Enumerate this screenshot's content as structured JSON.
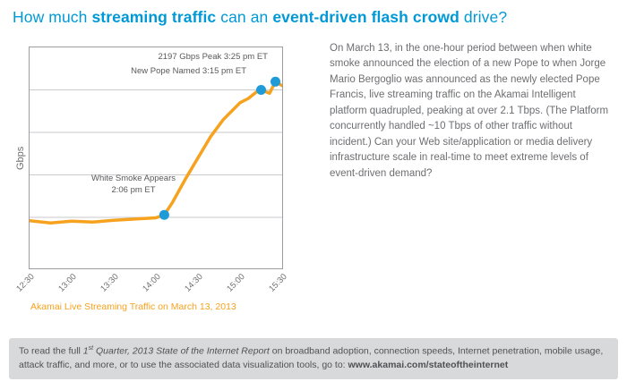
{
  "title": {
    "parts": [
      {
        "text": "How much ",
        "bold": false,
        "name": "title-part"
      },
      {
        "text": "streaming traffic",
        "bold": true,
        "name": "title-part"
      },
      {
        "text": " can an ",
        "bold": false,
        "name": "title-part"
      },
      {
        "text": "event-driven flash crowd",
        "bold": true,
        "name": "title-part"
      },
      {
        "text": " drive?",
        "bold": false,
        "name": "title-part"
      }
    ]
  },
  "colors": {
    "title_blue": "#0099D6",
    "line_orange": "#F6A21E",
    "dot_blue": "#1F9CD7",
    "text_gray": "#6D6E71",
    "grid_gray": "#C8CACC",
    "plot_border": "#9B9DA0",
    "footer_bg": "#D8D9DB"
  },
  "chart_data": {
    "type": "line",
    "title": "",
    "xlabel": "",
    "ylabel": "Gbps",
    "caption": "Akamai Live Streaming Traffic on March 13, 2013",
    "x_ticks": [
      "12:30",
      "13:00",
      "13:30",
      "14:00",
      "14:30",
      "15:00",
      "15:30"
    ],
    "x": [
      12.5,
      12.75,
      13.0,
      13.25,
      13.5,
      13.75,
      14.0,
      14.1,
      14.2,
      14.35,
      14.5,
      14.65,
      14.8,
      15.0,
      15.1,
      15.2,
      15.25,
      15.35,
      15.42,
      15.5
    ],
    "values": [
      560,
      535,
      555,
      545,
      565,
      580,
      595,
      630,
      780,
      1050,
      1300,
      1550,
      1750,
      1950,
      2000,
      2080,
      2100,
      2060,
      2197,
      2150
    ],
    "xlim": [
      12.5,
      15.5
    ],
    "ylim": [
      0,
      2600
    ],
    "gridlines": [
      600,
      1100,
      1600,
      2100
    ],
    "grid": true,
    "legend": "none",
    "annotations": [
      {
        "label": "2197 Gbps Peak 3:25 pm ET",
        "x": 15.42,
        "y": 2197
      },
      {
        "label": "New Pope Named 3:15 pm ET",
        "x": 15.25,
        "y": 2100
      },
      {
        "label": "White Smoke Appears\n2:06 pm ET",
        "x": 14.1,
        "y": 630
      }
    ]
  },
  "body_text": "On March 13, in the one-hour period between when white smoke announced the election of a new Pope to when Jorge Mario Bergoglio was announced as the newly elected Pope Francis, live streaming traffic on the Akamai Intelligent platform  quadrupled, peaking at over 2.1 Tbps.  (The Platform concurrently handled ~10 Tbps of other traffic without incident.)  Can your Web site/application or media  delivery infrastructure scale in real-time to meet extreme levels of event-driven demand?",
  "footer": {
    "parts": [
      {
        "text": "To read the full ",
        "name": "footer-text"
      },
      {
        "text": "1",
        "italic": true,
        "name": "footer-text"
      },
      {
        "text": "st",
        "italic": true,
        "sup": true,
        "name": "footer-text"
      },
      {
        "text": " Quarter, 2013 State of the Internet Report",
        "italic": true,
        "name": "footer-text"
      },
      {
        "text": " on broadband adoption, connection speeds, Internet penetration, mobile usage, attack traffic, and more, or to use the associated data visualization tools, go to: ",
        "name": "footer-text"
      },
      {
        "text": "www.akamai.com/stateoftheinternet",
        "bold": true,
        "link": true,
        "name": "footer-url"
      }
    ]
  }
}
